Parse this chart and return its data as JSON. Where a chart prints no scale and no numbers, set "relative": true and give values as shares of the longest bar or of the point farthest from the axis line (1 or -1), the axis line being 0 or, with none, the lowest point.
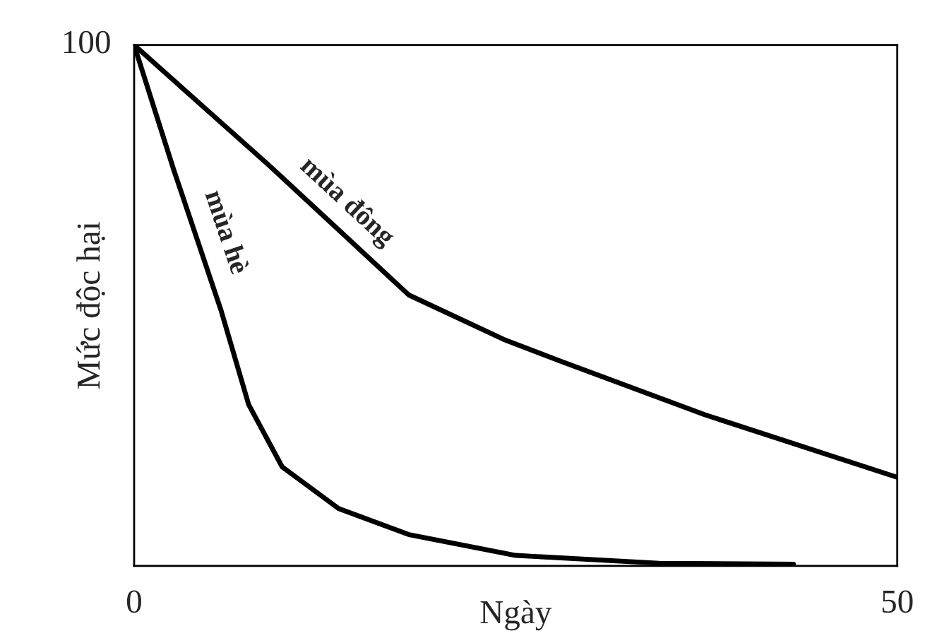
{
  "chart_data": {
    "type": "line",
    "relative": true,
    "xlabel": "Ngày",
    "ylabel": "Mức độc hại",
    "annotations": [
      "100"
    ],
    "xlim": [
      0,
      50
    ],
    "xticks": [
      0,
      50
    ],
    "grid": false,
    "legend": false,
    "marker": "none",
    "line_style": "solid",
    "series": [
      {
        "name": "mùa hè",
        "color": "#000000",
        "x": [
          0,
          2.6,
          5.7,
          7.5,
          9.7,
          13.4,
          18,
          25,
          34.4,
          43.2
        ],
        "values": [
          1,
          0.76,
          0.49,
          0.31,
          0.19,
          0.11,
          0.06,
          0.02,
          0.005,
          0.003
        ]
      },
      {
        "name": "mùa đông",
        "color": "#000000",
        "x": [
          0,
          8.8,
          18,
          24.2,
          28.2,
          37.4,
          50
        ],
        "values": [
          1,
          0.77,
          0.52,
          0.435,
          0.39,
          0.29,
          0.17
        ]
      }
    ]
  }
}
